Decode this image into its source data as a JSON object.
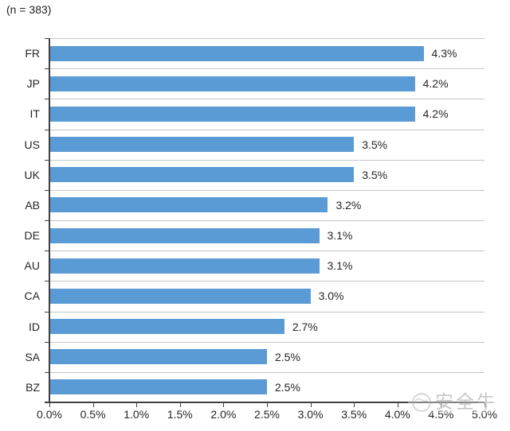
{
  "header": {
    "sample_label": "(n = 383)"
  },
  "chart_data": {
    "type": "bar",
    "orientation": "horizontal",
    "title": "",
    "xlabel": "",
    "ylabel": "",
    "categories": [
      "FR",
      "JP",
      "IT",
      "US",
      "UK",
      "AB",
      "DE",
      "AU",
      "CA",
      "ID",
      "SA",
      "BZ"
    ],
    "values": [
      4.3,
      4.2,
      4.2,
      3.5,
      3.5,
      3.2,
      3.1,
      3.1,
      3.0,
      2.7,
      2.5,
      2.5
    ],
    "value_labels": [
      "4.3%",
      "4.2%",
      "4.2%",
      "3.5%",
      "3.5%",
      "3.2%",
      "3.1%",
      "3.1%",
      "3.0%",
      "2.7%",
      "2.5%",
      "2.5%"
    ],
    "xlim": [
      0,
      5
    ],
    "x_ticks": [
      "0.0%",
      "0.5%",
      "1.0%",
      "1.5%",
      "2.0%",
      "2.5%",
      "3.0%",
      "3.5%",
      "4.0%",
      "4.5%",
      "5.0%"
    ],
    "grid": true,
    "legend_position": "none",
    "colors": {
      "bar": "#5B9BD5",
      "gridline": "#C6C6C6",
      "axis": "#404040",
      "text": "#262626"
    }
  },
  "watermark": {
    "text": "安全牛",
    "logo": "swirl-circle-logo",
    "color": "#b3b3b3"
  }
}
